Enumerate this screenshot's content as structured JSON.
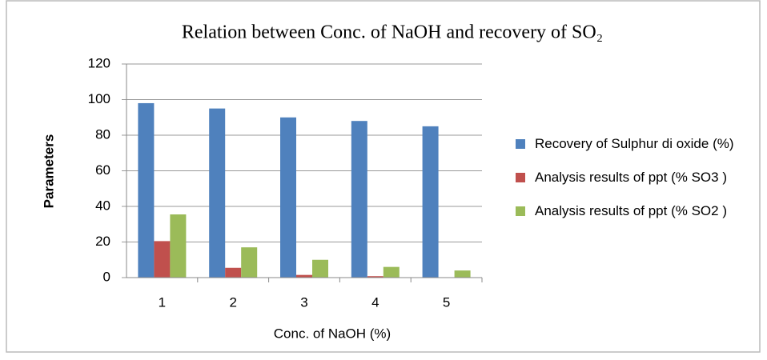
{
  "chart_data": {
    "type": "bar",
    "title": "Relation between Conc. of NaOH and recovery of SO₂",
    "x_label": "Conc. of NaOH (%)",
    "y_label": "Parameters",
    "categories": [
      "1",
      "2",
      "3",
      "4",
      "5"
    ],
    "series": [
      {
        "name": "Recovery of Sulphur di oxide  (%)",
        "color": "#4f81bd",
        "values": [
          98,
          95,
          90,
          88,
          85
        ]
      },
      {
        "name": "Analysis results of ppt  (% SO3 )",
        "color": "#c0504d",
        "values": [
          20.5,
          5.5,
          1.5,
          0.8,
          0
        ]
      },
      {
        "name": "Analysis results of ppt  (% SO2 )",
        "color": "#9bbb59",
        "values": [
          35.5,
          17,
          10,
          6,
          4
        ]
      }
    ],
    "ylim": [
      0,
      120
    ],
    "yticks": [
      0,
      20,
      40,
      60,
      80,
      100,
      120
    ],
    "grid": true,
    "legend": "right"
  }
}
